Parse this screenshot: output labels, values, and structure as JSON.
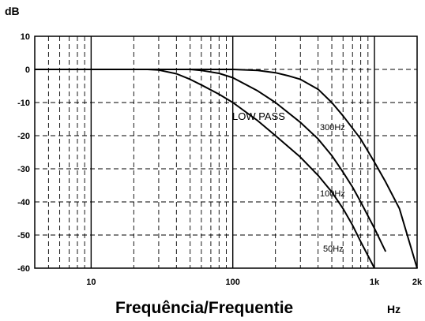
{
  "chart_data": {
    "type": "line",
    "title": "",
    "ylabel": "dB",
    "xlabel": "Frequência/Frequentie",
    "xunit": "Hz",
    "annotation": "LOW PASS",
    "xscale": "log",
    "xlim": [
      4,
      2000
    ],
    "ylim": [
      -60,
      10
    ],
    "grid": true,
    "xticks": [
      {
        "value": 10,
        "label": "10"
      },
      {
        "value": 100,
        "label": "100"
      },
      {
        "value": 1000,
        "label": "1k"
      },
      {
        "value": 2000,
        "label": "2k"
      }
    ],
    "yticks": [
      {
        "value": 10,
        "label": "10"
      },
      {
        "value": 0,
        "label": "0"
      },
      {
        "value": -10,
        "label": "-10"
      },
      {
        "value": -20,
        "label": "-20"
      },
      {
        "value": -30,
        "label": "-30"
      },
      {
        "value": -40,
        "label": "-40"
      },
      {
        "value": -50,
        "label": "-50"
      },
      {
        "value": -60,
        "label": "-60"
      }
    ],
    "series": [
      {
        "name": "50Hz",
        "x": [
          4,
          10,
          20,
          25,
          30,
          40,
          50,
          60,
          80,
          100,
          150,
          200,
          300,
          400,
          500,
          600,
          700,
          800,
          1000
        ],
        "y": [
          0,
          0,
          0,
          0,
          -0.2,
          -1.3,
          -3,
          -4.7,
          -7.5,
          -10,
          -15.5,
          -20,
          -26.5,
          -32,
          -37,
          -42,
          -47,
          -52,
          -60
        ]
      },
      {
        "name": "100Hz",
        "x": [
          4,
          10,
          30,
          50,
          60,
          80,
          100,
          150,
          200,
          300,
          400,
          500,
          600,
          700,
          800,
          1000,
          1200
        ],
        "y": [
          0,
          0,
          0,
          0,
          -0.3,
          -1.2,
          -2.5,
          -6.5,
          -10,
          -16,
          -21,
          -26,
          -31,
          -35.5,
          -40,
          -48,
          -55
        ]
      },
      {
        "name": "300Hz",
        "x": [
          4,
          10,
          100,
          150,
          200,
          250,
          300,
          400,
          500,
          600,
          800,
          1000,
          1200,
          1500,
          2000
        ],
        "y": [
          0,
          0,
          0,
          -0.3,
          -1,
          -2,
          -3,
          -6,
          -10,
          -14,
          -21,
          -28,
          -34,
          -42,
          -60
        ]
      }
    ],
    "curve_labels": [
      "300Hz",
      "100Hz",
      "50Hz"
    ]
  }
}
